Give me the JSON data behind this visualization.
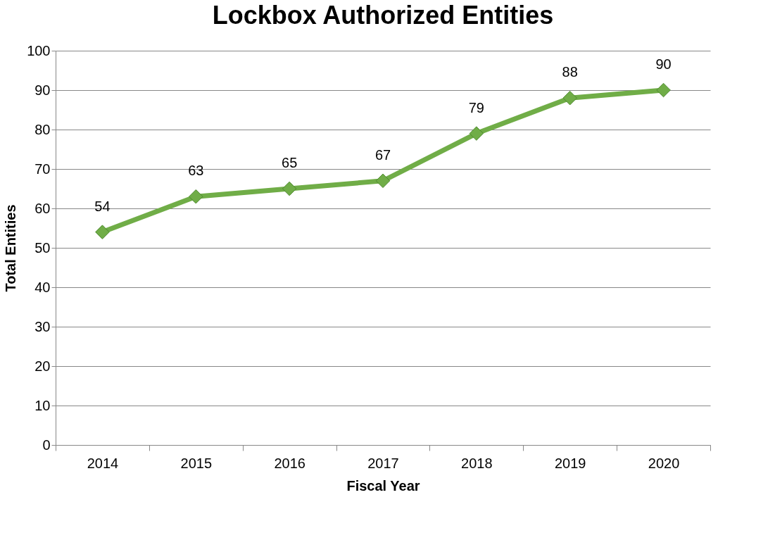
{
  "chart_data": {
    "type": "line",
    "title": "Lockbox Authorized Entities",
    "xlabel": "Fiscal Year",
    "ylabel": "Total Entities",
    "categories": [
      "2014",
      "2015",
      "2016",
      "2017",
      "2018",
      "2019",
      "2020"
    ],
    "series": [
      {
        "color": "#70ad47",
        "values": [
          54,
          63,
          65,
          67,
          79,
          88,
          90
        ]
      }
    ],
    "ylim": [
      0,
      100
    ],
    "yticks": [
      0,
      10,
      20,
      30,
      40,
      50,
      60,
      70,
      80,
      90,
      100
    ],
    "grid": "y",
    "marker": "diamond",
    "line_style": "solid",
    "data_labels": true
  }
}
